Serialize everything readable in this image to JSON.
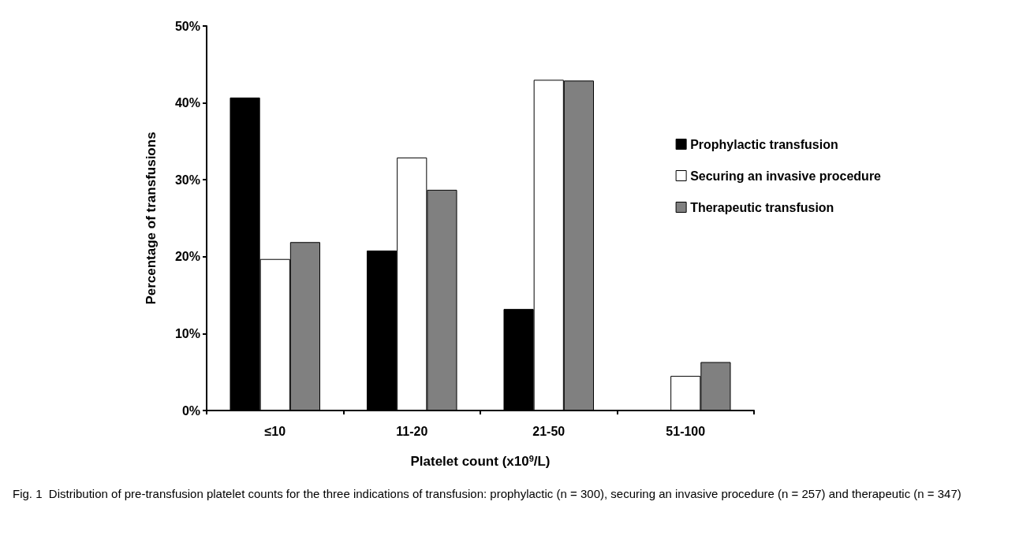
{
  "chart_data": {
    "type": "bar",
    "xlabel": "Platelet count (x10$^{9}$/L)",
    "ylabel": "Percentage of transfusions",
    "categories": [
      "≤10",
      "11-20",
      "21-50",
      "51-100"
    ],
    "series": [
      {
        "name": "Prophylactic transfusion",
        "color": "#000000",
        "values": [
          40.7,
          20.8,
          13.2,
          0
        ]
      },
      {
        "name": "Securing an invasive procedure",
        "color": "#ffffff",
        "values": [
          19.7,
          32.9,
          43.0,
          4.5
        ]
      },
      {
        "name": "Therapeutic transfusion",
        "color": "#808080",
        "values": [
          21.9,
          28.7,
          42.9,
          6.3
        ]
      }
    ],
    "ylim": [
      0,
      50
    ],
    "yticks": [
      {
        "value": 0,
        "label": "0%"
      },
      {
        "value": 10,
        "label": "10%"
      },
      {
        "value": 20,
        "label": "20%"
      },
      {
        "value": 30,
        "label": "30%"
      },
      {
        "value": 40,
        "label": "40%"
      },
      {
        "value": 50,
        "label": "50%"
      }
    ],
    "grid": false,
    "legend": "right",
    "annotations": [
      "Fig. 1  Distribution of pre-transfusion platelet counts for the three indications of transfusion: prophylactic (n = 300), securing an invasive procedure (n = 257) and therapeutic (n = 347)"
    ]
  }
}
